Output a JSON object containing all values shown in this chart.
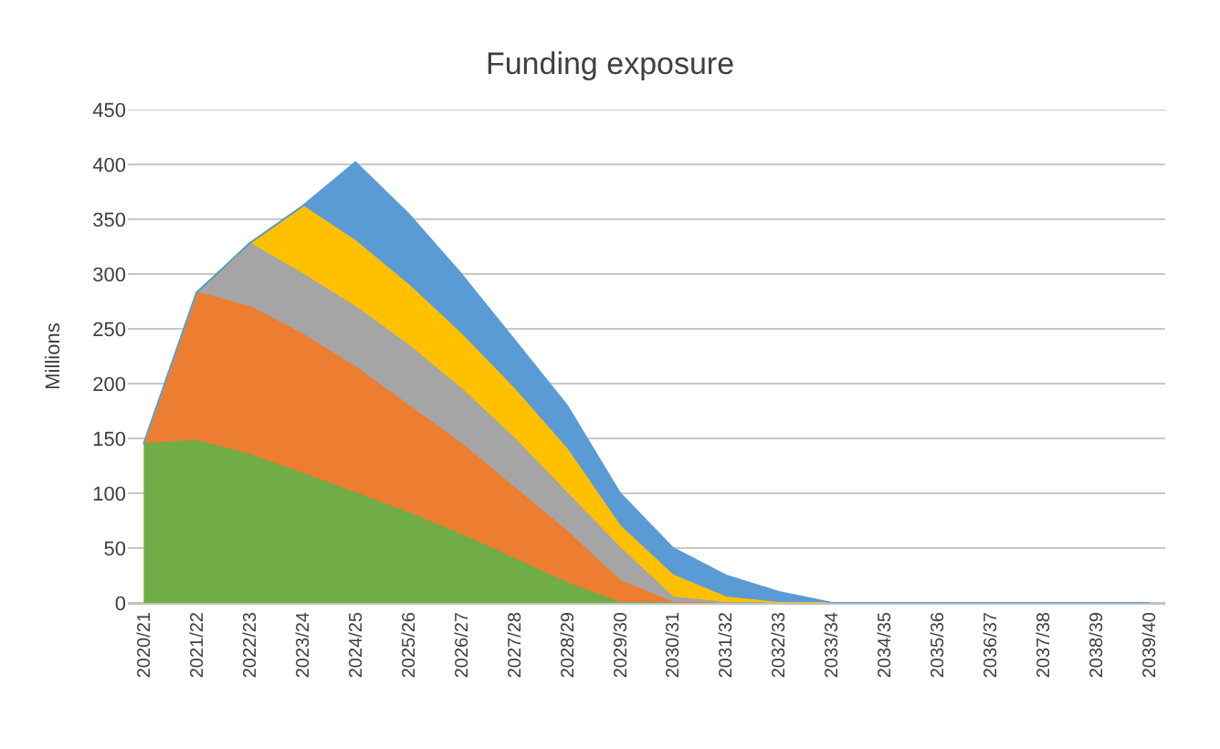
{
  "chart_data": {
    "type": "area",
    "title": "Funding exposure",
    "ylabel": "Millions",
    "stacked": true,
    "grid": "y",
    "categories": [
      "2020/21",
      "2021/22",
      "2022/23",
      "2023/24",
      "2024/25",
      "2025/26",
      "2026/27",
      "2027/28",
      "2028/29",
      "2029/30",
      "2030/31",
      "2031/32",
      "2032/33",
      "2033/34",
      "2034/35",
      "2035/36",
      "2036/37",
      "2037/38",
      "2038/39",
      "2039/40"
    ],
    "ylim": [
      0,
      450
    ],
    "yticks": [
      0,
      50,
      100,
      150,
      200,
      250,
      300,
      350,
      400,
      450
    ],
    "series": [
      {
        "color": "#70ad47",
        "values": [
          145,
          148,
          135,
          118,
          100,
          82,
          62,
          40,
          18,
          0,
          0,
          0,
          0,
          0,
          0,
          0,
          0,
          0,
          0,
          0
        ]
      },
      {
        "color": "#ed7d31",
        "values": [
          0,
          135,
          135,
          127,
          115,
          98,
          83,
          65,
          47,
          20,
          0,
          0,
          0,
          0,
          0,
          0,
          0,
          0,
          0,
          0
        ]
      },
      {
        "color": "#a5a5a5",
        "values": [
          0,
          0,
          58,
          55,
          55,
          55,
          50,
          45,
          35,
          30,
          5,
          0,
          0,
          0,
          0,
          0,
          0,
          0,
          0,
          0
        ]
      },
      {
        "color": "#ffc000",
        "values": [
          0,
          0,
          0,
          62,
          60,
          55,
          50,
          45,
          40,
          20,
          20,
          5,
          0,
          0,
          0,
          0,
          0,
          0,
          0,
          0
        ]
      },
      {
        "color": "#5b9bd5",
        "values": [
          0,
          0,
          0,
          0,
          72,
          65,
          55,
          45,
          40,
          30,
          25,
          20,
          10,
          0,
          0,
          0,
          0,
          0,
          0,
          0
        ]
      }
    ]
  }
}
